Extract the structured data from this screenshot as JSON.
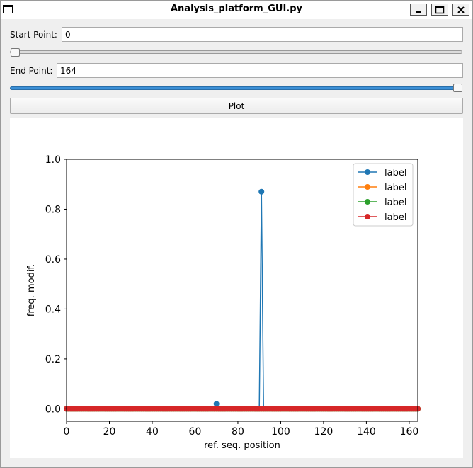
{
  "window": {
    "title": "Analysis_platform_GUI.py",
    "buttons": {
      "minimize": "minimize-icon",
      "maximize": "maximize-icon",
      "close": "close-icon"
    }
  },
  "controls": {
    "start": {
      "label": "Start Point:",
      "value": "0",
      "slider_fraction": 0.0
    },
    "end": {
      "label": "End Point:",
      "value": "164",
      "slider_fraction": 1.0
    },
    "plot_label": "Plot",
    "accent": "#3b8fd6"
  },
  "chart_data": {
    "type": "line",
    "xlabel": "ref. seq. position",
    "ylabel": "freq. modif.",
    "xlim": [
      0,
      164
    ],
    "ylim": [
      -0.05,
      1.0
    ],
    "xticks": [
      0,
      20,
      40,
      60,
      80,
      100,
      120,
      140,
      160
    ],
    "yticks": [
      0.0,
      0.2,
      0.4,
      0.6,
      0.8,
      1.0
    ],
    "xtick_labels": [
      "0",
      "20",
      "40",
      "60",
      "80",
      "100",
      "120",
      "140",
      "160"
    ],
    "ytick_labels": [
      "0.0",
      "0.2",
      "0.4",
      "0.6",
      "0.8",
      "1.0"
    ],
    "legend_position": "top-right",
    "grid": false,
    "marker": "circle",
    "series": [
      {
        "name": "label",
        "color": "#1f77b4",
        "baseline": 0,
        "points": [
          [
            70,
            0.02
          ],
          [
            91,
            0.87
          ]
        ]
      },
      {
        "name": "label",
        "color": "#ff7f0e",
        "baseline": 0,
        "points": []
      },
      {
        "name": "label",
        "color": "#2ca02c",
        "baseline": 0,
        "points": []
      },
      {
        "name": "label",
        "color": "#d62728",
        "baseline": 0,
        "points": []
      }
    ]
  }
}
